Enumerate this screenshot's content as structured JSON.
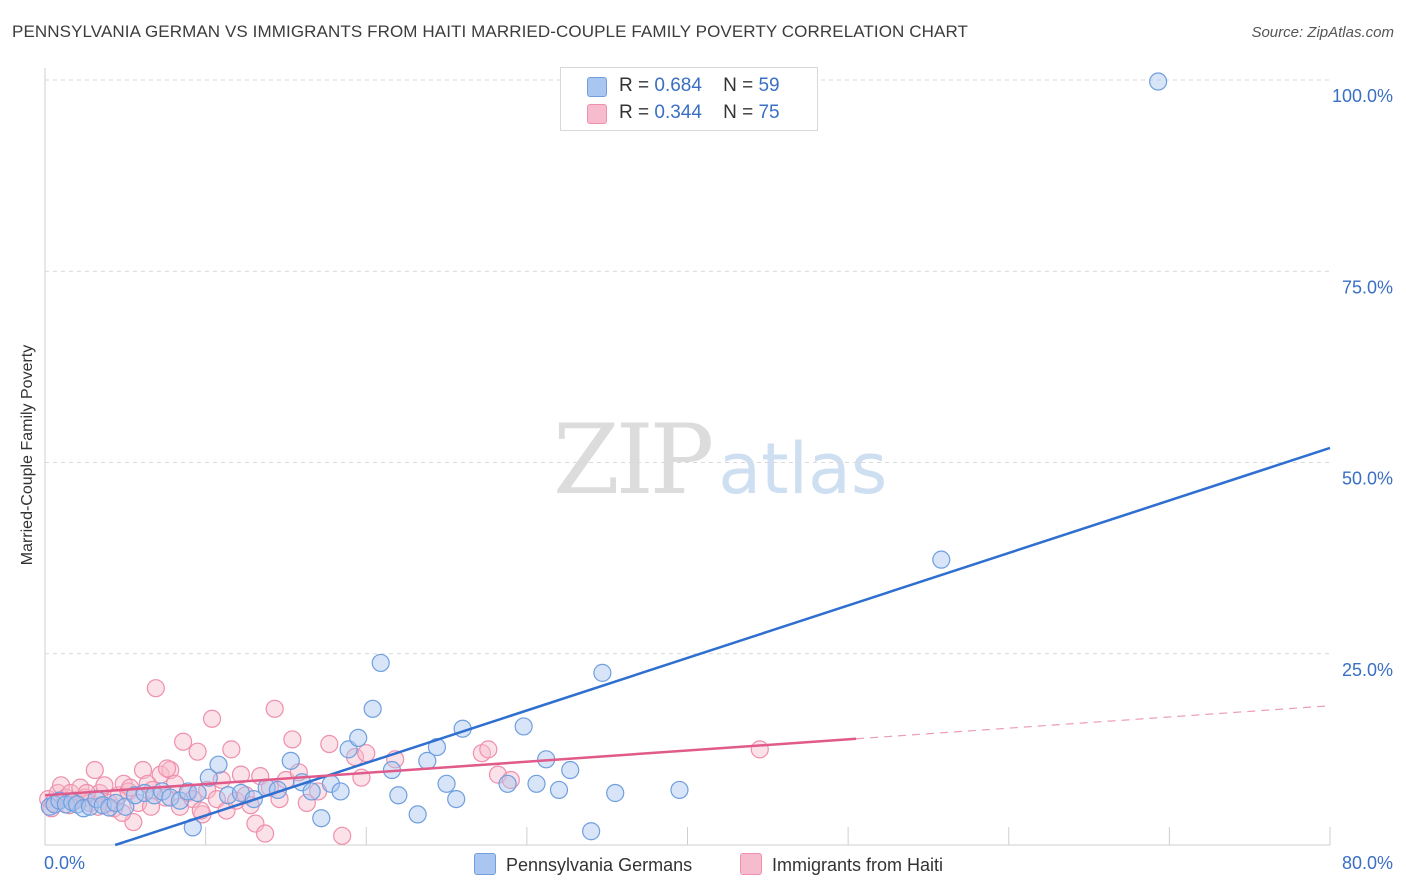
{
  "title": "PENNSYLVANIA GERMAN VS IMMIGRANTS FROM HAITI MARRIED-COUPLE FAMILY POVERTY CORRELATION CHART",
  "source": "Source: ZipAtlas.com",
  "watermark": {
    "zip": "ZIP",
    "atlas": "atlas"
  },
  "legend": {
    "r_label": "R =",
    "n_label": "N =",
    "entries": [
      {
        "r": "0.684",
        "n": "59"
      },
      {
        "r": "0.344",
        "n": "75"
      }
    ]
  },
  "bottom_legend": [
    "Pennsylvania Germans",
    "Immigrants from Haiti"
  ],
  "colors": {
    "blue_fill": "#a8c6ef",
    "blue_stroke": "#6f9fde",
    "blue_line": "#2e6fd0",
    "pink_fill": "#f6bccd",
    "pink_stroke": "#ef8fac",
    "pink_line": "#e05a8a",
    "axis_label": "#3a6fc4"
  },
  "chart_data": {
    "type": "scatter",
    "title": "PENNSYLVANIA GERMAN VS IMMIGRANTS FROM HAITI MARRIED-COUPLE FAMILY POVERTY CORRELATION CHART",
    "xlabel": "",
    "ylabel": "Married-Couple Family Poverty",
    "xlim": [
      0,
      80
    ],
    "ylim": [
      0,
      100
    ],
    "x_tick_labels": [
      "0.0%",
      "80.0%"
    ],
    "y_ticks": [
      25,
      50,
      75,
      100
    ],
    "y_tick_labels": [
      "25.0%",
      "50.0%",
      "75.0%",
      "100.0%"
    ],
    "grid": true,
    "series": [
      {
        "name": "Pennsylvania Germans",
        "r": 0.684,
        "n": 59,
        "trend": {
          "x": [
            0,
            80
          ],
          "y": [
            -3.0,
            51.9
          ],
          "dashed_from": null
        },
        "points": [
          [
            0.3,
            5.0
          ],
          [
            0.6,
            5.3
          ],
          [
            0.9,
            5.8
          ],
          [
            1.3,
            5.3
          ],
          [
            1.7,
            5.6
          ],
          [
            2.0,
            5.3
          ],
          [
            2.4,
            4.8
          ],
          [
            2.8,
            5.0
          ],
          [
            3.2,
            6.0
          ],
          [
            3.6,
            5.2
          ],
          [
            4.0,
            4.9
          ],
          [
            4.4,
            5.5
          ],
          [
            5.0,
            5.0
          ],
          [
            5.6,
            6.5
          ],
          [
            6.2,
            6.8
          ],
          [
            6.8,
            6.5
          ],
          [
            7.3,
            7.0
          ],
          [
            7.8,
            6.2
          ],
          [
            8.4,
            5.8
          ],
          [
            8.9,
            7.0
          ],
          [
            9.5,
            6.8
          ],
          [
            10.2,
            8.8
          ],
          [
            10.8,
            10.5
          ],
          [
            11.4,
            6.5
          ],
          [
            12.2,
            6.8
          ],
          [
            13.0,
            6.0
          ],
          [
            13.8,
            7.5
          ],
          [
            14.5,
            7.2
          ],
          [
            15.3,
            11.0
          ],
          [
            16.0,
            8.2
          ],
          [
            16.6,
            7.0
          ],
          [
            17.2,
            3.5
          ],
          [
            17.8,
            8.0
          ],
          [
            18.4,
            7.0
          ],
          [
            18.9,
            12.5
          ],
          [
            19.5,
            14.0
          ],
          [
            20.4,
            17.8
          ],
          [
            20.9,
            23.8
          ],
          [
            21.6,
            9.8
          ],
          [
            22.0,
            6.5
          ],
          [
            23.2,
            4.0
          ],
          [
            23.8,
            11.0
          ],
          [
            24.4,
            12.8
          ],
          [
            25.0,
            8.0
          ],
          [
            25.6,
            6.0
          ],
          [
            26.0,
            15.2
          ],
          [
            28.8,
            8.0
          ],
          [
            29.8,
            15.5
          ],
          [
            30.6,
            8.0
          ],
          [
            31.2,
            11.2
          ],
          [
            32.0,
            7.2
          ],
          [
            32.7,
            9.8
          ],
          [
            34.0,
            1.8
          ],
          [
            34.7,
            22.5
          ],
          [
            35.5,
            6.8
          ],
          [
            39.5,
            7.2
          ],
          [
            55.8,
            37.3
          ],
          [
            69.3,
            99.8
          ],
          [
            9.2,
            2.3
          ]
        ]
      },
      {
        "name": "Immigrants from Haiti",
        "r": 0.344,
        "n": 75,
        "trend": {
          "x": [
            0,
            80
          ],
          "y": [
            6.5,
            18.2
          ],
          "dashed_from": 50.5
        },
        "points": [
          [
            0.2,
            6.0
          ],
          [
            0.5,
            5.5
          ],
          [
            0.8,
            6.8
          ],
          [
            1.0,
            7.8
          ],
          [
            1.3,
            6.2
          ],
          [
            1.6,
            6.8
          ],
          [
            1.9,
            5.8
          ],
          [
            2.2,
            7.5
          ],
          [
            2.5,
            6.2
          ],
          [
            2.8,
            5.5
          ],
          [
            3.1,
            9.8
          ],
          [
            3.4,
            6.8
          ],
          [
            3.7,
            7.8
          ],
          [
            4.0,
            5.5
          ],
          [
            4.3,
            4.8
          ],
          [
            4.6,
            6.5
          ],
          [
            4.9,
            8.0
          ],
          [
            5.2,
            7.0
          ],
          [
            5.5,
            3.0
          ],
          [
            5.8,
            5.5
          ],
          [
            6.1,
            9.8
          ],
          [
            6.4,
            8.0
          ],
          [
            6.7,
            7.2
          ],
          [
            6.9,
            20.5
          ],
          [
            7.2,
            9.2
          ],
          [
            7.5,
            6.2
          ],
          [
            7.8,
            9.8
          ],
          [
            8.1,
            8.0
          ],
          [
            8.4,
            5.0
          ],
          [
            8.6,
            13.5
          ],
          [
            8.9,
            6.8
          ],
          [
            9.2,
            6.0
          ],
          [
            9.5,
            12.2
          ],
          [
            9.8,
            4.0
          ],
          [
            10.1,
            7.2
          ],
          [
            10.4,
            16.5
          ],
          [
            10.7,
            6.0
          ],
          [
            11.0,
            8.5
          ],
          [
            11.3,
            4.5
          ],
          [
            11.6,
            12.5
          ],
          [
            11.9,
            5.8
          ],
          [
            12.2,
            9.2
          ],
          [
            12.5,
            6.5
          ],
          [
            12.8,
            5.2
          ],
          [
            13.1,
            2.8
          ],
          [
            13.4,
            9.0
          ],
          [
            13.7,
            1.5
          ],
          [
            14.0,
            7.5
          ],
          [
            14.3,
            17.8
          ],
          [
            14.6,
            6.0
          ],
          [
            15.0,
            8.5
          ],
          [
            15.4,
            13.8
          ],
          [
            15.8,
            9.5
          ],
          [
            16.3,
            5.5
          ],
          [
            17.0,
            7.0
          ],
          [
            17.7,
            13.2
          ],
          [
            18.5,
            1.2
          ],
          [
            19.3,
            11.5
          ],
          [
            19.7,
            8.8
          ],
          [
            20.0,
            12.0
          ],
          [
            21.8,
            11.2
          ],
          [
            27.2,
            12.0
          ],
          [
            27.6,
            12.5
          ],
          [
            28.2,
            9.2
          ],
          [
            29.0,
            8.5
          ],
          [
            0.4,
            4.8
          ],
          [
            1.5,
            5.2
          ],
          [
            2.6,
            6.8
          ],
          [
            3.3,
            5.0
          ],
          [
            4.8,
            4.2
          ],
          [
            5.3,
            7.5
          ],
          [
            6.6,
            5.0
          ],
          [
            7.6,
            10.0
          ],
          [
            9.7,
            4.5
          ],
          [
            44.5,
            12.5
          ]
        ]
      }
    ]
  }
}
